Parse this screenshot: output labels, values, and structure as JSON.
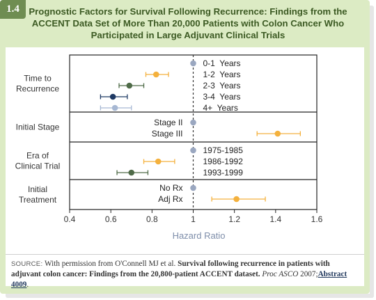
{
  "figure": {
    "number": "1.4",
    "title": "Prognostic Factors for Survival Following Recurrence: Findings from the ACCENT Data Set of More Than 20,000 Patients with Colon Cancer Who Participated in Large Adjuvant Clinical Trials"
  },
  "source": {
    "label": "SOURCE:",
    "prefix": " With permission from O'Connell MJ et al. ",
    "article_title": "Survival following recurrence in patients with adjuvant colon cancer: Findings from the 20,800-patient ACCENT dataset.",
    "journal": "Proc ASCO",
    "year": "2007;",
    "abstract": "Abstract 4009",
    "end": "."
  },
  "colors": {
    "reference": "#9aa7c0",
    "orange": "#f4b13d",
    "green": "#4f6b48",
    "navy": "#1f3a64",
    "lightblue": "#a7b8d3",
    "axis": "#222222",
    "xlabel": "#7e8eaa"
  },
  "chart_data": {
    "type": "forest",
    "xlabel": "Hazard Ratio",
    "xlim": [
      0.4,
      1.6
    ],
    "xticks": [
      "0.4",
      "0.6",
      "0.8",
      "1",
      "1.2",
      "1.4",
      "1.6"
    ],
    "reference_line": 1,
    "groups": [
      {
        "label": "Time to\nRecurrence",
        "items": [
          {
            "label": "0-1  Years",
            "hr": 1.0,
            "ci": null,
            "color": "reference"
          },
          {
            "label": "1-2  Years",
            "hr": 0.82,
            "ci": [
              0.77,
              0.88
            ],
            "color": "orange"
          },
          {
            "label": "2-3  Years",
            "hr": 0.69,
            "ci": [
              0.64,
              0.76
            ],
            "color": "green"
          },
          {
            "label": "3-4  Years",
            "hr": 0.61,
            "ci": [
              0.55,
              0.68
            ],
            "color": "navy"
          },
          {
            "label": "4+  Years",
            "hr": 0.62,
            "ci": [
              0.55,
              0.7
            ],
            "color": "lightblue"
          }
        ]
      },
      {
        "label": "Initial Stage",
        "items": [
          {
            "label": "Stage II",
            "hr": 1.0,
            "ci": null,
            "color": "reference"
          },
          {
            "label": "Stage III",
            "hr": 1.41,
            "ci": [
              1.31,
              1.52
            ],
            "color": "orange"
          }
        ]
      },
      {
        "label": "Era of\nClinical Trial",
        "items": [
          {
            "label": "1975-1985",
            "hr": 1.0,
            "ci": null,
            "color": "reference"
          },
          {
            "label": "1986-1992",
            "hr": 0.83,
            "ci": [
              0.76,
              0.91
            ],
            "color": "orange"
          },
          {
            "label": "1993-1999",
            "hr": 0.7,
            "ci": [
              0.63,
              0.78
            ],
            "color": "green"
          }
        ]
      },
      {
        "label": "Initial\nTreatment",
        "items": [
          {
            "label": "No Rx",
            "hr": 1.0,
            "ci": null,
            "color": "reference"
          },
          {
            "label": "Adj Rx",
            "hr": 1.21,
            "ci": [
              1.09,
              1.35
            ],
            "color": "orange"
          }
        ]
      }
    ]
  }
}
